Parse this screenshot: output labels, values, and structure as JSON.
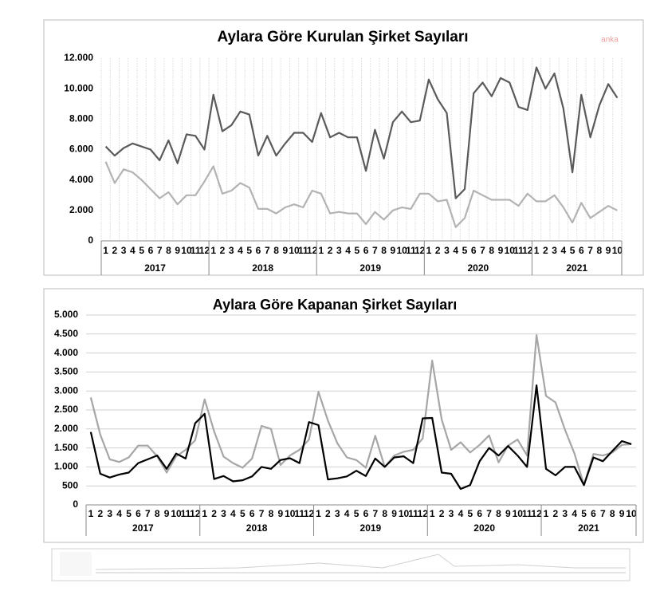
{
  "chart_data": [
    {
      "type": "line",
      "title": "Aylara Göre Kurulan Şirket Sayıları",
      "watermark": "anka",
      "categories": [
        "1",
        "2",
        "3",
        "4",
        "5",
        "6",
        "7",
        "8",
        "9",
        "10",
        "11",
        "12",
        "1",
        "2",
        "3",
        "4",
        "5",
        "6",
        "7",
        "8",
        "9",
        "10",
        "11",
        "12",
        "1",
        "2",
        "3",
        "4",
        "5",
        "6",
        "7",
        "8",
        "9",
        "10",
        "11",
        "12",
        "1",
        "2",
        "3",
        "4",
        "5",
        "6",
        "7",
        "8",
        "9",
        "10",
        "11",
        "12",
        "1",
        "2",
        "3",
        "4",
        "5",
        "6",
        "7",
        "8",
        "9",
        "10"
      ],
      "year_labels": [
        "2017",
        "2018",
        "2019",
        "2020",
        "2021"
      ],
      "series": [
        {
          "color": "#5a5a5a",
          "values": [
            6200,
            5600,
            6100,
            6400,
            6200,
            6000,
            5300,
            6600,
            5100,
            7000,
            6900,
            6000,
            9600,
            7200,
            7600,
            8500,
            8300,
            5600,
            6900,
            5600,
            6400,
            7100,
            7100,
            6500,
            8400,
            6800,
            7100,
            6800,
            6800,
            4600,
            7300,
            5400,
            7800,
            8500,
            7800,
            7900,
            10600,
            9300,
            8400,
            2800,
            3400,
            9700,
            10400,
            9500,
            10700,
            10400,
            8800,
            8600,
            11400,
            10000,
            11000,
            8700,
            4500,
            9600,
            6800,
            8900,
            10300,
            9400
          ]
        },
        {
          "color": "#b3b3b3",
          "values": [
            5200,
            3800,
            4700,
            4500,
            4000,
            3400,
            2800,
            3200,
            2400,
            3000,
            3000,
            3900,
            4900,
            3100,
            3300,
            3800,
            3500,
            2100,
            2100,
            1800,
            2200,
            2400,
            2200,
            3300,
            3100,
            1800,
            1900,
            1800,
            1800,
            1100,
            1900,
            1400,
            2000,
            2200,
            2100,
            3100,
            3100,
            2600,
            2700,
            900,
            1500,
            3300,
            3000,
            2700,
            2700,
            2700,
            2300,
            3100,
            2600,
            2600,
            3000,
            2200,
            1200,
            2500,
            1500,
            1900,
            2300,
            2000
          ]
        }
      ],
      "ylim": [
        0,
        12000
      ],
      "yticks": [
        0,
        {
          "value": 2000,
          "label": "2.000"
        },
        {
          "value": 4000,
          "label": "4.000"
        },
        {
          "value": 6000,
          "label": "6.000"
        },
        {
          "value": 8000,
          "label": "8.000"
        },
        {
          "value": 10000,
          "label": "10.000"
        },
        {
          "value": 12000,
          "label": "12.000"
        }
      ],
      "grid": true
    },
    {
      "type": "line",
      "title": "Aylara Göre Kapanan Şirket Sayıları",
      "categories": [
        "1",
        "2",
        "3",
        "4",
        "5",
        "6",
        "7",
        "8",
        "9",
        "10",
        "11",
        "12",
        "1",
        "2",
        "3",
        "4",
        "5",
        "6",
        "7",
        "8",
        "9",
        "10",
        "11",
        "12",
        "1",
        "2",
        "3",
        "4",
        "5",
        "6",
        "7",
        "8",
        "9",
        "10",
        "11",
        "12",
        "1",
        "2",
        "3",
        "4",
        "5",
        "6",
        "7",
        "8",
        "9",
        "10",
        "11",
        "12",
        "1",
        "2",
        "3",
        "4",
        "5",
        "6",
        "7",
        "8",
        "9",
        "10"
      ],
      "year_labels": [
        "2017",
        "2018",
        "2019",
        "2020",
        "2021"
      ],
      "series": [
        {
          "color": "#a6a6a6",
          "values": [
            2830,
            1850,
            1200,
            1130,
            1250,
            1560,
            1560,
            1280,
            850,
            1280,
            1450,
            1700,
            2780,
            1940,
            1270,
            1100,
            980,
            1220,
            2080,
            2000,
            1050,
            1300,
            1450,
            1720,
            2980,
            2220,
            1620,
            1250,
            1180,
            980,
            1820,
            1000,
            1300,
            1400,
            1450,
            1750,
            3800,
            2250,
            1450,
            1650,
            1380,
            1580,
            1830,
            1120,
            1560,
            1720,
            1300,
            4470,
            2870,
            2700,
            1980,
            1350,
            520,
            1340,
            1300,
            1380,
            1580,
            1600
          ]
        },
        {
          "color": "#000000",
          "values": [
            1920,
            820,
            720,
            800,
            850,
            1100,
            1200,
            1300,
            950,
            1350,
            1220,
            2150,
            2400,
            680,
            760,
            620,
            650,
            750,
            1000,
            950,
            1180,
            1230,
            1100,
            2180,
            2100,
            670,
            700,
            750,
            900,
            760,
            1220,
            1000,
            1250,
            1280,
            1100,
            2280,
            2290,
            850,
            820,
            420,
            520,
            1150,
            1500,
            1300,
            1550,
            1300,
            1000,
            3150,
            950,
            780,
            1000,
            1000,
            520,
            1250,
            1150,
            1420,
            1680,
            1600
          ]
        }
      ],
      "ylim": [
        0,
        5000
      ],
      "yticks": [
        0,
        500,
        {
          "value": 1000,
          "label": "1.000"
        },
        {
          "value": 1500,
          "label": "1.500"
        },
        {
          "value": 2000,
          "label": "2.000"
        },
        {
          "value": 2500,
          "label": "2.500"
        },
        {
          "value": 3000,
          "label": "3.000"
        },
        {
          "value": 3500,
          "label": "3.500"
        },
        {
          "value": 4000,
          "label": "4.000"
        },
        {
          "value": 4500,
          "label": "4.500"
        },
        {
          "value": 5000,
          "label": "5.000"
        }
      ],
      "grid": true
    }
  ]
}
